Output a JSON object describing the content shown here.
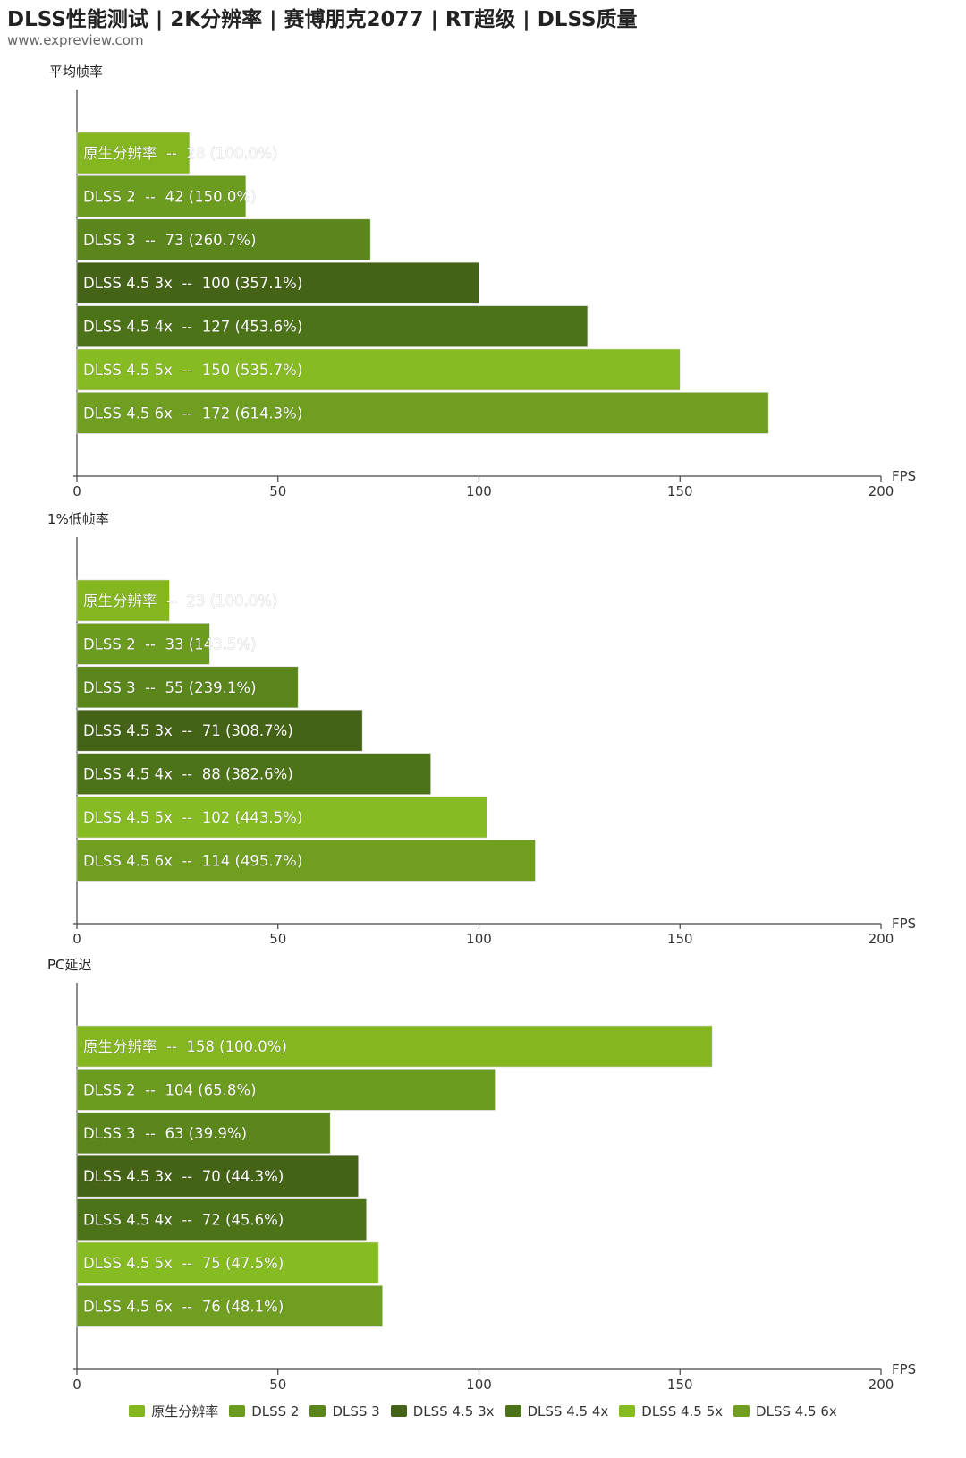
{
  "title": "DLSS性能测试 | 2K分辨率 | 赛博朋克2077 | RT超级 | DLSS质量",
  "subtitle": "www.expreview.com",
  "colors": [
    "#84b61f",
    "#6c9c1f",
    "#5a861c",
    "#456316",
    "#4d7319",
    "#86bb21",
    "#6f9e20"
  ],
  "legend": [
    "原生分辨率",
    "DLSS 2",
    "DLSS 3",
    "DLSS 4.5 3x",
    "DLSS 4.5 4x",
    "DLSS 4.5 5x",
    "DLSS 4.5 6x"
  ],
  "chart_data": [
    {
      "type": "bar",
      "title": "平均帧率",
      "xlabel": "FPS",
      "xlim": [
        0,
        200
      ],
      "ticks": [
        "0",
        "50",
        "100",
        "150",
        "200"
      ],
      "categories": [
        "原生分辨率",
        "DLSS 2",
        "DLSS 3",
        "DLSS 4.5 3x",
        "DLSS 4.5 4x",
        "DLSS 4.5 5x",
        "DLSS 4.5 6x"
      ],
      "values": [
        28,
        42,
        73,
        100,
        127,
        150,
        172
      ],
      "labels": [
        "原生分辨率  --  28 (100.0%)",
        "DLSS 2  --  42 (150.0%)",
        "DLSS 3  --  73 (260.7%)",
        "DLSS 4.5 3x  --  100 (357.1%)",
        "DLSS 4.5 4x  --  127 (453.6%)",
        "DLSS 4.5 5x  --  150 (535.7%)",
        "DLSS 4.5 6x  --  172 (614.3%)"
      ]
    },
    {
      "type": "bar",
      "title": "1%低帧率",
      "xlabel": "FPS",
      "xlim": [
        0,
        200
      ],
      "ticks": [
        "0",
        "50",
        "100",
        "150",
        "200"
      ],
      "categories": [
        "原生分辨率",
        "DLSS 2",
        "DLSS 3",
        "DLSS 4.5 3x",
        "DLSS 4.5 4x",
        "DLSS 4.5 5x",
        "DLSS 4.5 6x"
      ],
      "values": [
        23,
        33,
        55,
        71,
        88,
        102,
        114
      ],
      "labels": [
        "原生分辨率  --  23 (100.0%)",
        "DLSS 2  --  33 (143.5%)",
        "DLSS 3  --  55 (239.1%)",
        "DLSS 4.5 3x  --  71 (308.7%)",
        "DLSS 4.5 4x  --  88 (382.6%)",
        "DLSS 4.5 5x  --  102 (443.5%)",
        "DLSS 4.5 6x  --  114 (495.7%)"
      ]
    },
    {
      "type": "bar",
      "title": "PC延迟",
      "xlabel": "FPS",
      "xlim": [
        0,
        200
      ],
      "ticks": [
        "0",
        "50",
        "100",
        "150",
        "200"
      ],
      "categories": [
        "原生分辨率",
        "DLSS 2",
        "DLSS 3",
        "DLSS 4.5 3x",
        "DLSS 4.5 4x",
        "DLSS 4.5 5x",
        "DLSS 4.5 6x"
      ],
      "values": [
        158,
        104,
        63,
        70,
        72,
        75,
        76
      ],
      "labels": [
        "原生分辨率  --  158 (100.0%)",
        "DLSS 2  --  104 (65.8%)",
        "DLSS 3  --  63 (39.9%)",
        "DLSS 4.5 3x  --  70 (44.3%)",
        "DLSS 4.5 4x  --  72 (45.6%)",
        "DLSS 4.5 5x  --  75 (47.5%)",
        "DLSS 4.5 6x  --  76 (48.1%)"
      ]
    }
  ]
}
